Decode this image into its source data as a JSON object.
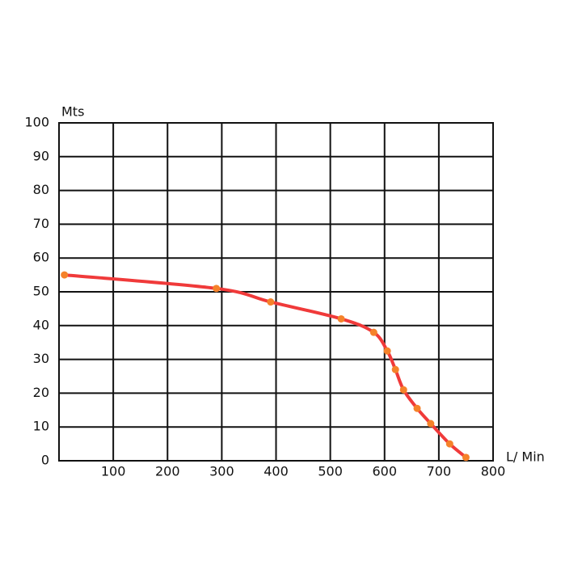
{
  "chart_data": {
    "type": "line",
    "y_label": "Mts",
    "x_label": "L/ Min",
    "x": [
      10,
      290,
      390,
      520,
      580,
      605,
      620,
      635,
      660,
      685,
      720,
      750
    ],
    "series": [
      {
        "color": "#f03a3a",
        "marker_color": "#f5822a",
        "values": [
          55,
          51,
          47,
          42,
          38,
          32.5,
          27,
          21,
          15.5,
          11,
          5,
          1
        ]
      }
    ],
    "xlim": [
      0,
      800
    ],
    "ylim": [
      0,
      100
    ],
    "xticks": [
      100,
      200,
      300,
      400,
      500,
      600,
      700,
      800
    ],
    "yticks": [
      0,
      10,
      20,
      30,
      40,
      50,
      60,
      70,
      80,
      90,
      100
    ],
    "grid": true
  }
}
